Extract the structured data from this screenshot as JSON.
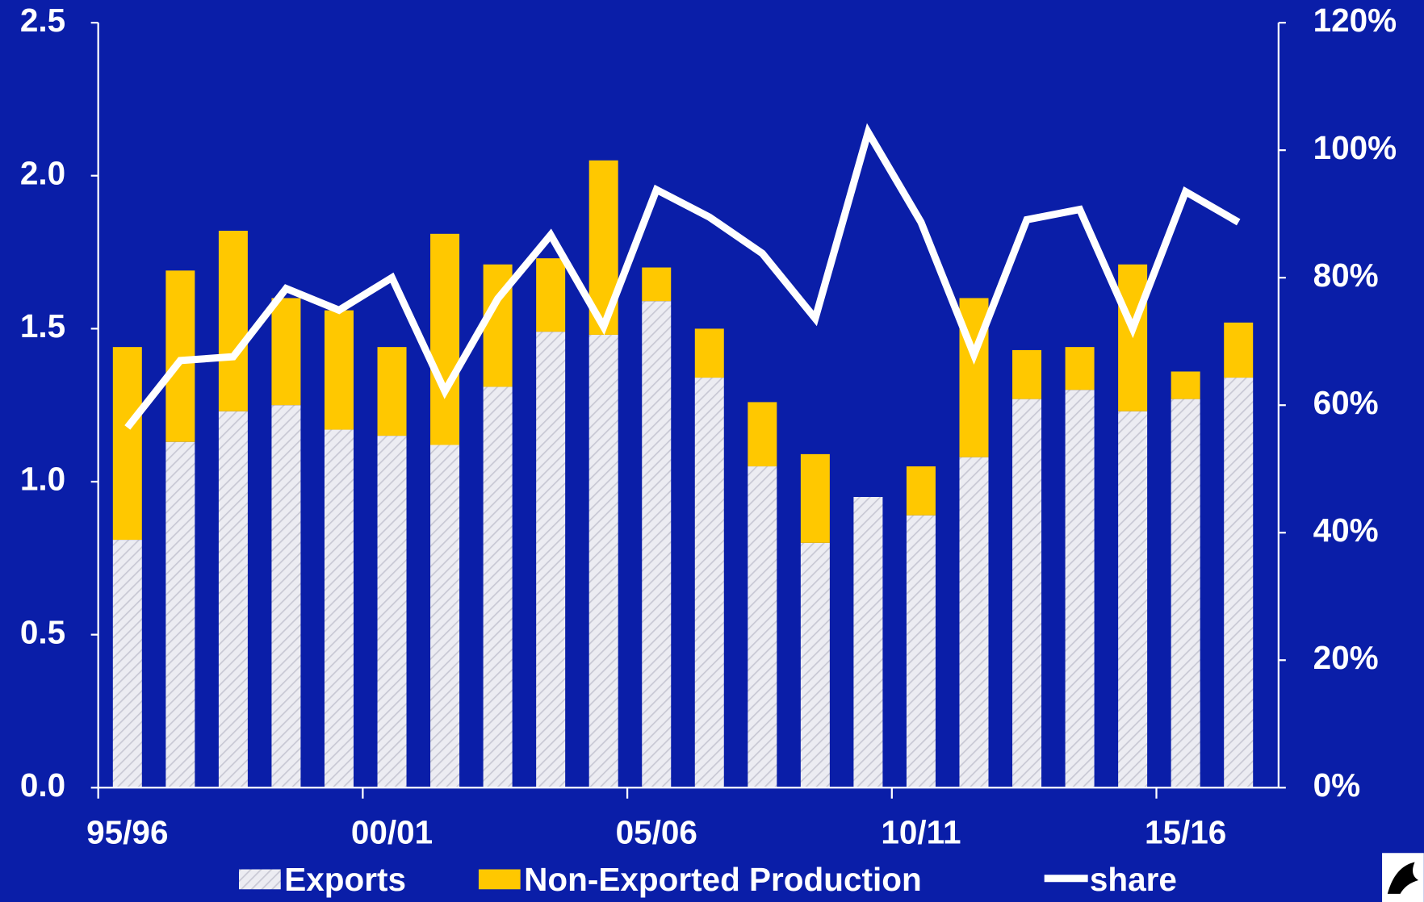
{
  "chart_data": {
    "type": "bar",
    "categories": [
      "95/96",
      null,
      null,
      null,
      null,
      "00/01",
      null,
      null,
      null,
      null,
      "05/06",
      null,
      null,
      null,
      null,
      "10/11",
      null,
      null,
      null,
      null,
      "15/16",
      null
    ],
    "series": [
      {
        "name": "Exports",
        "color": "#e6e6ee",
        "values": [
          0.81,
          1.13,
          1.23,
          1.25,
          1.17,
          1.15,
          1.12,
          1.31,
          1.49,
          1.48,
          1.59,
          1.34,
          1.05,
          0.8,
          0.95,
          0.89,
          1.08,
          1.27,
          1.3,
          1.23,
          1.27,
          1.34
        ]
      },
      {
        "name": "Non-Exported Production",
        "color": "#ffc800",
        "values": [
          0.63,
          0.56,
          0.59,
          0.35,
          0.39,
          0.29,
          0.69,
          0.4,
          0.24,
          0.57,
          0.11,
          0.16,
          0.21,
          0.29,
          0,
          0.16,
          0.52,
          0.16,
          0.14,
          0.48,
          0.09,
          0.18
        ]
      },
      {
        "name": "share",
        "color": "#ffffff",
        "axis": "y2",
        "values": [
          56.5,
          67.0,
          67.6,
          78.3,
          74.9,
          80.0,
          62.2,
          76.7,
          86.7,
          72.3,
          93.8,
          89.5,
          83.8,
          73.6,
          102.8,
          88.7,
          67.9,
          89.1,
          90.7,
          72.0,
          93.5,
          88.7
        ]
      }
    ],
    "ylim": [
      0,
      2.5
    ],
    "yticks": [
      {
        "value": 0,
        "label": "0.0"
      },
      0.5,
      {
        "value": 1,
        "label": "1.0"
      },
      1.5,
      {
        "value": 2,
        "label": "2.0"
      },
      2.5
    ],
    "y2lim": [
      0,
      120
    ],
    "y2ticks": [
      {
        "value": 0,
        "label": "0%"
      },
      {
        "value": 20,
        "label": "20%"
      },
      {
        "value": 40,
        "label": "40%"
      },
      {
        "value": 60,
        "label": "60%"
      },
      {
        "value": 80,
        "label": "80%"
      },
      {
        "value": 100,
        "label": "100%"
      },
      {
        "value": 120,
        "label": "120%"
      }
    ],
    "legend": "bottom"
  }
}
